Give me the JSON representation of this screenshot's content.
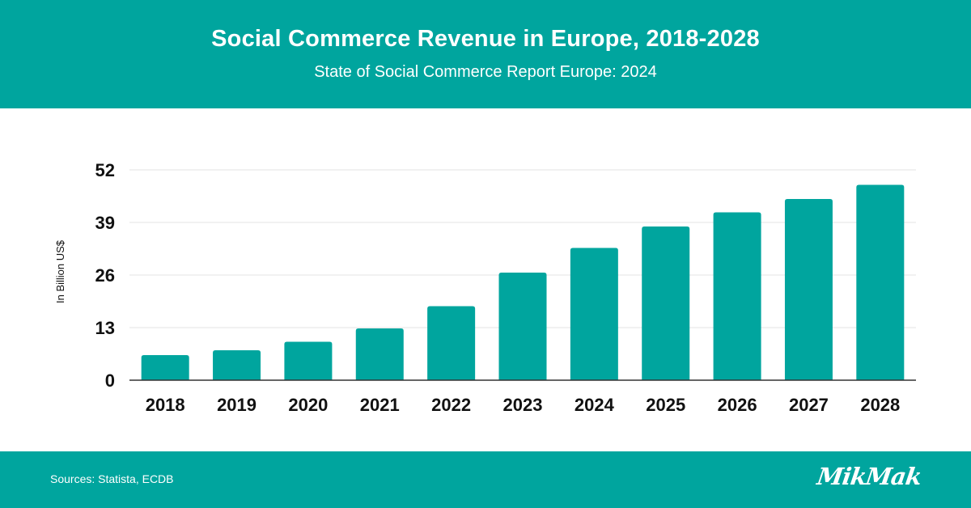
{
  "header": {
    "title": "Social Commerce Revenue in Europe, 2018-2028",
    "subtitle": "State of Social Commerce Report Europe: 2024"
  },
  "footer": {
    "sources": "Sources: Statista, ECDB",
    "logo_text": "MikMak"
  },
  "colors": {
    "brand": "#00a59e",
    "bar": "#00a59e",
    "grid": "#e3e3e3",
    "axis": "#333333"
  },
  "chart_data": {
    "type": "bar",
    "title": "Social Commerce Revenue in Europe, 2018-2028",
    "subtitle": "State of Social Commerce Report Europe: 2024",
    "xlabel": "",
    "ylabel": "In Billion US$",
    "categories": [
      "2018",
      "2019",
      "2020",
      "2021",
      "2022",
      "2023",
      "2024",
      "2025",
      "2026",
      "2027",
      "2028"
    ],
    "values": [
      6.2,
      7.4,
      9.5,
      12.8,
      18.3,
      26.6,
      32.7,
      38.0,
      41.5,
      44.8,
      48.3
    ],
    "ylim": [
      0,
      52
    ],
    "yticks": [
      0,
      13,
      26,
      39,
      52
    ],
    "grid": true,
    "legend": "none"
  }
}
